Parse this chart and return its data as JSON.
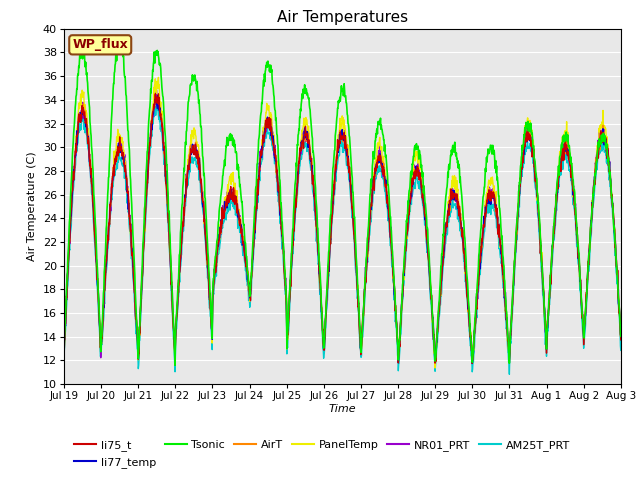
{
  "title": "Air Temperatures",
  "xlabel": "Time",
  "ylabel": "Air Temperature (C)",
  "ylim": [
    10,
    40
  ],
  "yticks": [
    10,
    12,
    14,
    16,
    18,
    20,
    22,
    24,
    26,
    28,
    30,
    32,
    34,
    36,
    38,
    40
  ],
  "axes_facecolor": "#e8e8e8",
  "figure_facecolor": "#ffffff",
  "grid_color": "#ffffff",
  "series": {
    "li75_t": {
      "color": "#cc0000",
      "lw": 1.0
    },
    "li77_temp": {
      "color": "#0000cc",
      "lw": 1.0
    },
    "Tsonic": {
      "color": "#00ee00",
      "lw": 1.2
    },
    "AirT": {
      "color": "#ff8800",
      "lw": 1.0
    },
    "PanelTemp": {
      "color": "#eeee00",
      "lw": 1.0
    },
    "NR01_PRT": {
      "color": "#9900cc",
      "lw": 1.0
    },
    "AM25T_PRT": {
      "color": "#00cccc",
      "lw": 1.0
    }
  },
  "xtick_labels": [
    "Jul 19",
    "Jul 20",
    "Jul 21",
    "Jul 22",
    "Jul 23",
    "Jul 24",
    "Jul 25",
    "Jul 26",
    "Jul 27",
    "Jul 28",
    "Jul 29",
    "Jul 30",
    "Jul 31",
    "Aug 1",
    "Aug 2",
    "Aug 3"
  ],
  "wp_flux_box": {
    "text": "WP_flux",
    "facecolor": "#ffff99",
    "edgecolor": "#8b4513",
    "textcolor": "#8b0000",
    "fontsize": 9,
    "fontweight": "bold"
  },
  "n_days": 15,
  "ppd": 96
}
